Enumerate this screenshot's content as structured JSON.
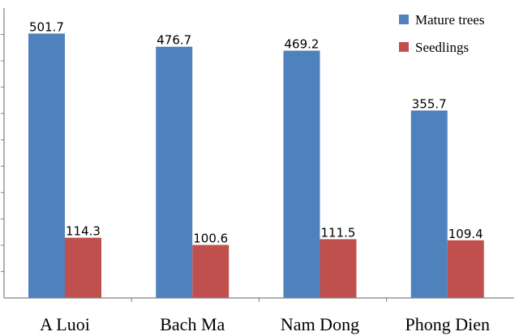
{
  "chart_data": {
    "type": "bar",
    "title": "",
    "xlabel": "",
    "ylabel": "",
    "categories": [
      "A Luoi",
      "Bach Ma",
      "Nam Dong",
      "Phong Dien"
    ],
    "series": [
      {
        "name": "Mature trees",
        "values": [
          501.7,
          476.7,
          469.2,
          355.7
        ],
        "labels": [
          "501.7",
          "476.7",
          "469.2",
          "355.7"
        ],
        "color": "#4F81BD"
      },
      {
        "name": "Seedlings",
        "values": [
          114.3,
          100.6,
          111.5,
          109.4
        ],
        "labels": [
          "114.3",
          "100.6",
          "111.5",
          "109.4"
        ],
        "color": "#C0504D"
      }
    ],
    "ylim": [
      0,
      550
    ],
    "grid": false,
    "legend_position": "top-right",
    "axis_line_color": "#7F7F7F"
  }
}
